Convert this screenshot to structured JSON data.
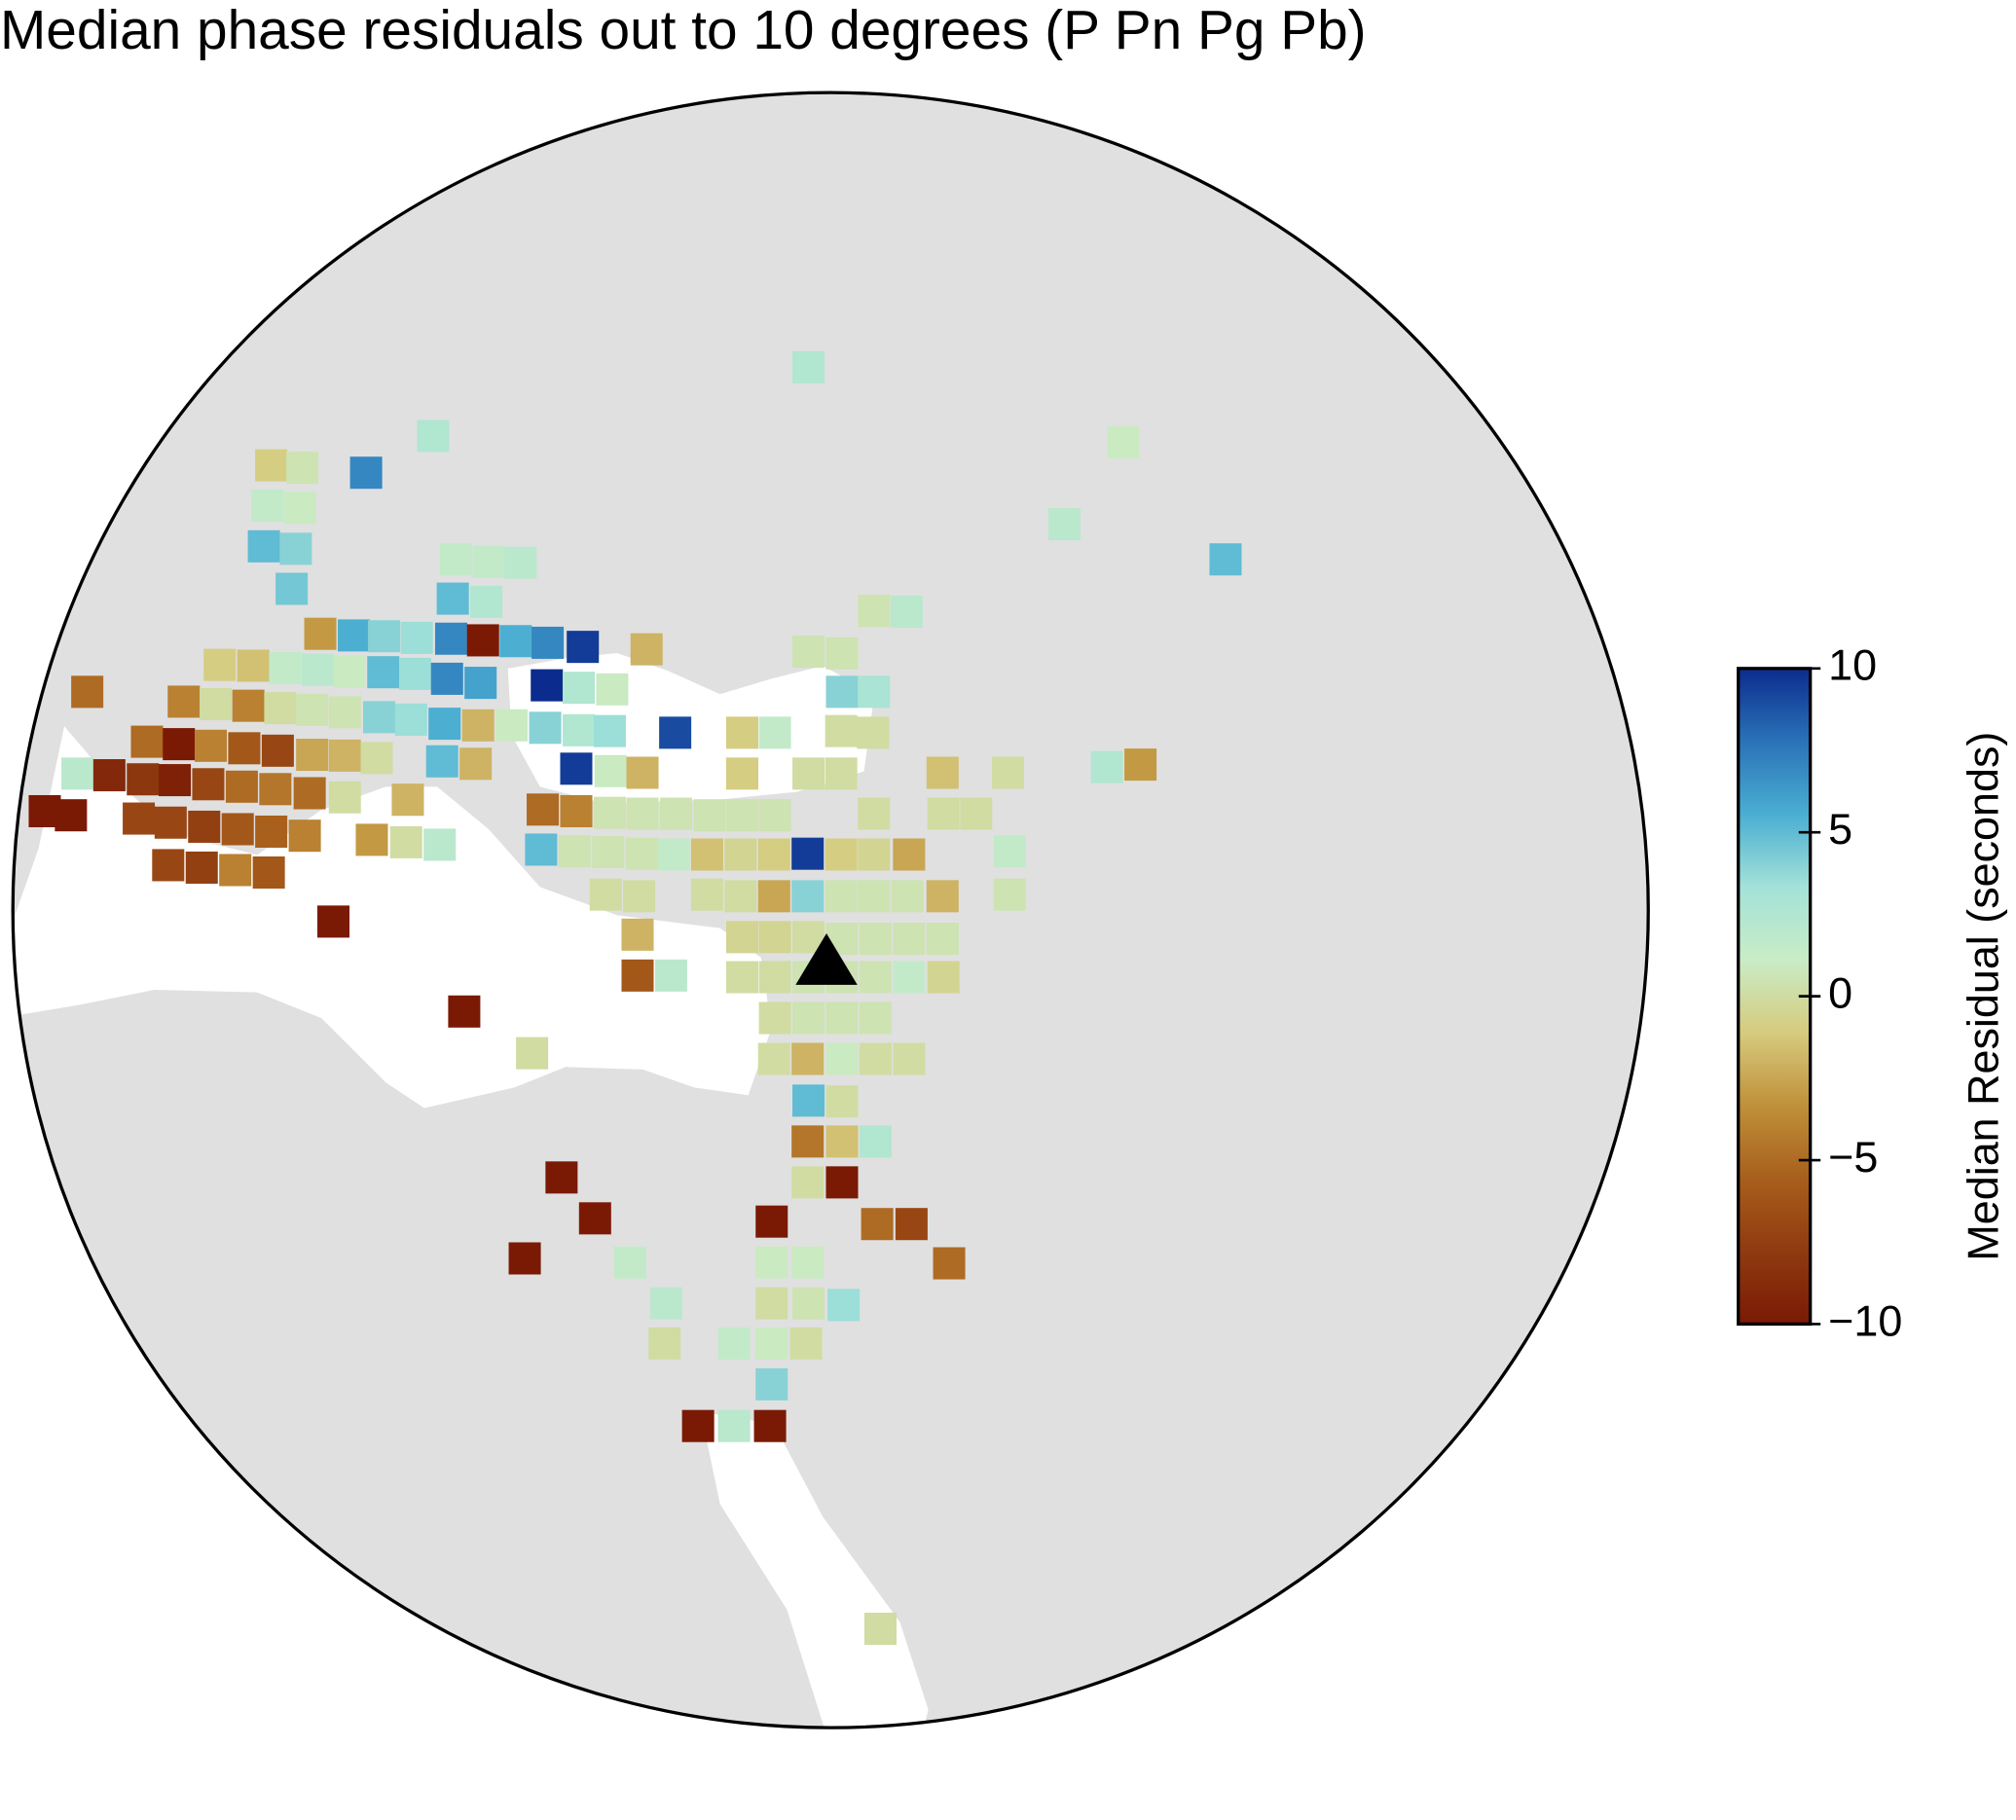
{
  "chart_data": {
    "type": "map",
    "title": "Median phase residuals out to 10 degrees (P Pn Pg Pb)",
    "colorbar_label": "Median Residual (seconds)",
    "xlim": [
      -10,
      10
    ],
    "ylim": [
      -10,
      10
    ],
    "clim": [
      -10,
      10
    ],
    "cticks": [
      {
        "value": -10,
        "label": "−10"
      },
      {
        "value": -5,
        "label": "−5"
      },
      0,
      5,
      10
    ],
    "colors": [
      "#7a1a05",
      "#8f3a10",
      "#a85f1c",
      "#c0903a",
      "#d6cb7e",
      "#c9ecc6",
      "#a3e2d8",
      "#4aaed2",
      "#2a72b8",
      "#0b2c8e"
    ],
    "station": {
      "x": -0.05,
      "y": -0.63
    },
    "x": [
      -0.27,
      -4.86,
      3.58,
      -6.84,
      -6.46,
      -5.68,
      -6.89,
      -6.49,
      2.86,
      -6.93,
      -6.54,
      4.83,
      -4.58,
      -4.18,
      -3.79,
      -6.59,
      -4.62,
      -4.21,
      0.53,
      0.93,
      -6.24,
      -5.83,
      -5.46,
      -5.06,
      -4.64,
      -4.25,
      -3.85,
      -3.46,
      -3.03,
      -2.25,
      -0.27,
      0.14,
      -7.47,
      -7.06,
      -6.67,
      -6.27,
      -5.88,
      -5.47,
      -5.08,
      -4.69,
      -4.28,
      -3.47,
      -3.08,
      -2.67,
      0.14,
      0.53,
      -9.09,
      -7.91,
      -7.52,
      -7.12,
      -6.73,
      -6.34,
      -5.94,
      -5.52,
      -5.13,
      -4.72,
      -4.31,
      -3.9,
      -3.49,
      -3.08,
      -2.7,
      -1.9,
      -1.08,
      -0.68,
      0.13,
      0.52,
      -8.36,
      -7.97,
      -7.58,
      -7.17,
      -6.76,
      -6.34,
      -5.94,
      -5.55,
      -9.21,
      -8.82,
      -8.41,
      -8.02,
      -7.61,
      -7.2,
      -6.79,
      -6.37,
      -5.94,
      -4.75,
      -4.34,
      -3.11,
      -2.69,
      -2.3,
      -1.08,
      -0.27,
      0.13,
      1.37,
      2.17,
      3.38,
      3.79,
      -9.61,
      -9.29,
      -8.46,
      -8.07,
      -7.66,
      -7.25,
      -6.84,
      -6.43,
      -5.17,
      -3.52,
      -3.11,
      -2.7,
      -2.3,
      -1.89,
      -1.48,
      -1.08,
      -0.68,
      0.53,
      1.38,
      1.78,
      -8.1,
      -7.69,
      -7.28,
      -6.87,
      -5.61,
      -5.19,
      -4.78,
      -3.54,
      -3.13,
      -2.72,
      -2.31,
      -1.92,
      -1.51,
      -1.1,
      -0.69,
      -0.28,
      0.13,
      0.53,
      0.96,
      2.19,
      -2.75,
      -2.34,
      -1.51,
      -1.1,
      -0.69,
      -0.28,
      0.13,
      0.53,
      0.94,
      1.37,
      2.19,
      -6.08,
      -2.36,
      -1.08,
      -0.68,
      -0.27,
      0.14,
      0.55,
      0.96,
      1.37,
      -2.36,
      -1.95,
      -1.08,
      -0.68,
      -0.27,
      0.14,
      0.55,
      0.96,
      1.38,
      -4.48,
      -0.68,
      -0.27,
      0.14,
      0.55,
      -3.65,
      -0.69,
      -0.28,
      0.14,
      0.55,
      0.96,
      -0.27,
      0.14,
      -0.28,
      0.14,
      0.55,
      -3.29,
      -0.28,
      0.14,
      -2.88,
      -0.72,
      0.57,
      0.99,
      -3.74,
      -2.45,
      -0.72,
      -0.28,
      1.45,
      -2.01,
      -0.72,
      -0.27,
      0.16,
      -2.03,
      -1.18,
      -0.72,
      -0.3,
      -0.72,
      -1.62,
      -1.18,
      -0.74,
      0.61
    ],
    "y": [
      6.64,
      5.8,
      5.72,
      5.44,
      5.41,
      5.35,
      4.95,
      4.92,
      4.72,
      4.45,
      4.42,
      4.29,
      4.29,
      4.26,
      4.25,
      3.93,
      3.81,
      3.77,
      3.66,
      3.65,
      3.38,
      3.36,
      3.35,
      3.33,
      3.32,
      3.3,
      3.29,
      3.27,
      3.22,
      3.19,
      3.16,
      3.14,
      3.0,
      2.99,
      2.96,
      2.94,
      2.92,
      2.91,
      2.89,
      2.83,
      2.78,
      2.75,
      2.72,
      2.7,
      2.67,
      2.67,
      2.67,
      2.55,
      2.52,
      2.5,
      2.47,
      2.45,
      2.42,
      2.36,
      2.33,
      2.28,
      2.26,
      2.26,
      2.23,
      2.2,
      2.19,
      2.17,
      2.17,
      2.17,
      2.19,
      2.17,
      2.06,
      2.03,
      2.01,
      1.98,
      1.95,
      1.9,
      1.89,
      1.86,
      1.67,
      1.65,
      1.6,
      1.59,
      1.54,
      1.51,
      1.48,
      1.43,
      1.38,
      1.82,
      1.79,
      1.73,
      1.7,
      1.68,
      1.67,
      1.67,
      1.67,
      1.68,
      1.68,
      1.75,
      1.78,
      1.21,
      1.16,
      1.12,
      1.07,
      1.02,
      0.99,
      0.96,
      0.91,
      1.35,
      1.23,
      1.21,
      1.19,
      1.18,
      1.18,
      1.16,
      1.16,
      1.16,
      1.18,
      1.18,
      1.18,
      0.55,
      0.52,
      0.49,
      0.46,
      0.86,
      0.83,
      0.8,
      0.74,
      0.72,
      0.71,
      0.69,
      0.68,
      0.68,
      0.68,
      0.68,
      0.69,
      0.68,
      0.68,
      0.68,
      0.72,
      0.19,
      0.17,
      0.19,
      0.17,
      0.17,
      0.17,
      0.17,
      0.17,
      0.17,
      0.17,
      0.19,
      -0.14,
      -0.3,
      -0.33,
      -0.33,
      -0.33,
      -0.35,
      -0.35,
      -0.35,
      -0.35,
      -0.8,
      -0.8,
      -0.82,
      -0.82,
      -0.82,
      -0.82,
      -0.82,
      -0.82,
      -0.82,
      -1.24,
      -1.32,
      -1.32,
      -1.32,
      -1.32,
      -1.75,
      -1.82,
      -1.82,
      -1.82,
      -1.82,
      -1.82,
      -2.33,
      -2.34,
      -2.83,
      -2.83,
      -2.83,
      -3.27,
      -3.33,
      -3.33,
      -3.77,
      -3.81,
      -3.84,
      -3.84,
      -4.26,
      -4.31,
      -4.31,
      -4.31,
      -4.32,
      -4.81,
      -4.81,
      -4.81,
      -4.83,
      -5.3,
      -5.3,
      -5.3,
      -5.3,
      -5.8,
      -6.31,
      -6.31,
      -6.31,
      -8.79
    ],
    "values": [
      2.5,
      2.5,
      1,
      -1,
      0.5,
      7,
      1.5,
      1,
      2,
      5,
      4,
      5,
      1.5,
      1.5,
      2,
      4.5,
      5,
      2.5,
      0.5,
      2,
      -3,
      5.5,
      4,
      3.5,
      7,
      -10,
      5.5,
      7,
      9.5,
      -2,
      0.5,
      0.5,
      -1,
      -1.5,
      1.5,
      2,
      1,
      5,
      3.5,
      7,
      6,
      10,
      2.5,
      1,
      4,
      3,
      -5,
      -4,
      0,
      -4,
      0,
      0.5,
      0.5,
      4,
      3.5,
      5.5,
      -2,
      1,
      4,
      2.5,
      3.5,
      9,
      -1,
      1.5,
      0,
      0,
      -5,
      -10,
      -4,
      -6,
      -7,
      -2.5,
      -2,
      0,
      2,
      -9,
      -8,
      -9.5,
      -7,
      -5,
      -4.5,
      -5,
      0,
      5,
      -2,
      9.5,
      1,
      -2,
      -1,
      0,
      0,
      -1.5,
      0,
      2.5,
      -3,
      -10,
      -10,
      -7,
      -7,
      -7.5,
      -6,
      -5.5,
      -4,
      -2,
      -5,
      -4,
      0.5,
      0.5,
      0.5,
      0.5,
      0.5,
      0.5,
      0,
      0,
      0,
      -7,
      -7.5,
      -4,
      -6,
      -3,
      0,
      2,
      5,
      0.5,
      0.5,
      0.5,
      1.5,
      -1.5,
      -0.5,
      -1,
      9.5,
      -1,
      -0.5,
      -2.5,
      1.5,
      0,
      0,
      0,
      0,
      -2.5,
      4,
      0.5,
      0.5,
      0.5,
      -2,
      0.5,
      -10,
      -2,
      -0.5,
      -0.5,
      0,
      0.5,
      0.5,
      0.5,
      0.5,
      -6,
      2,
      0,
      0,
      0.5,
      0.5,
      0.5,
      1.5,
      -0.5,
      -10,
      0,
      0.5,
      0.5,
      0.5,
      0,
      0,
      -2,
      1,
      0,
      0,
      5,
      0,
      -4.5,
      -1.5,
      2.5,
      -10,
      0,
      -10,
      -10,
      -10,
      -5,
      -7,
      -10,
      1.5,
      1,
      1,
      -5,
      2,
      0,
      0.5,
      3.5,
      0,
      1.5,
      1,
      0,
      4,
      -10,
      2,
      -10,
      0
    ]
  }
}
